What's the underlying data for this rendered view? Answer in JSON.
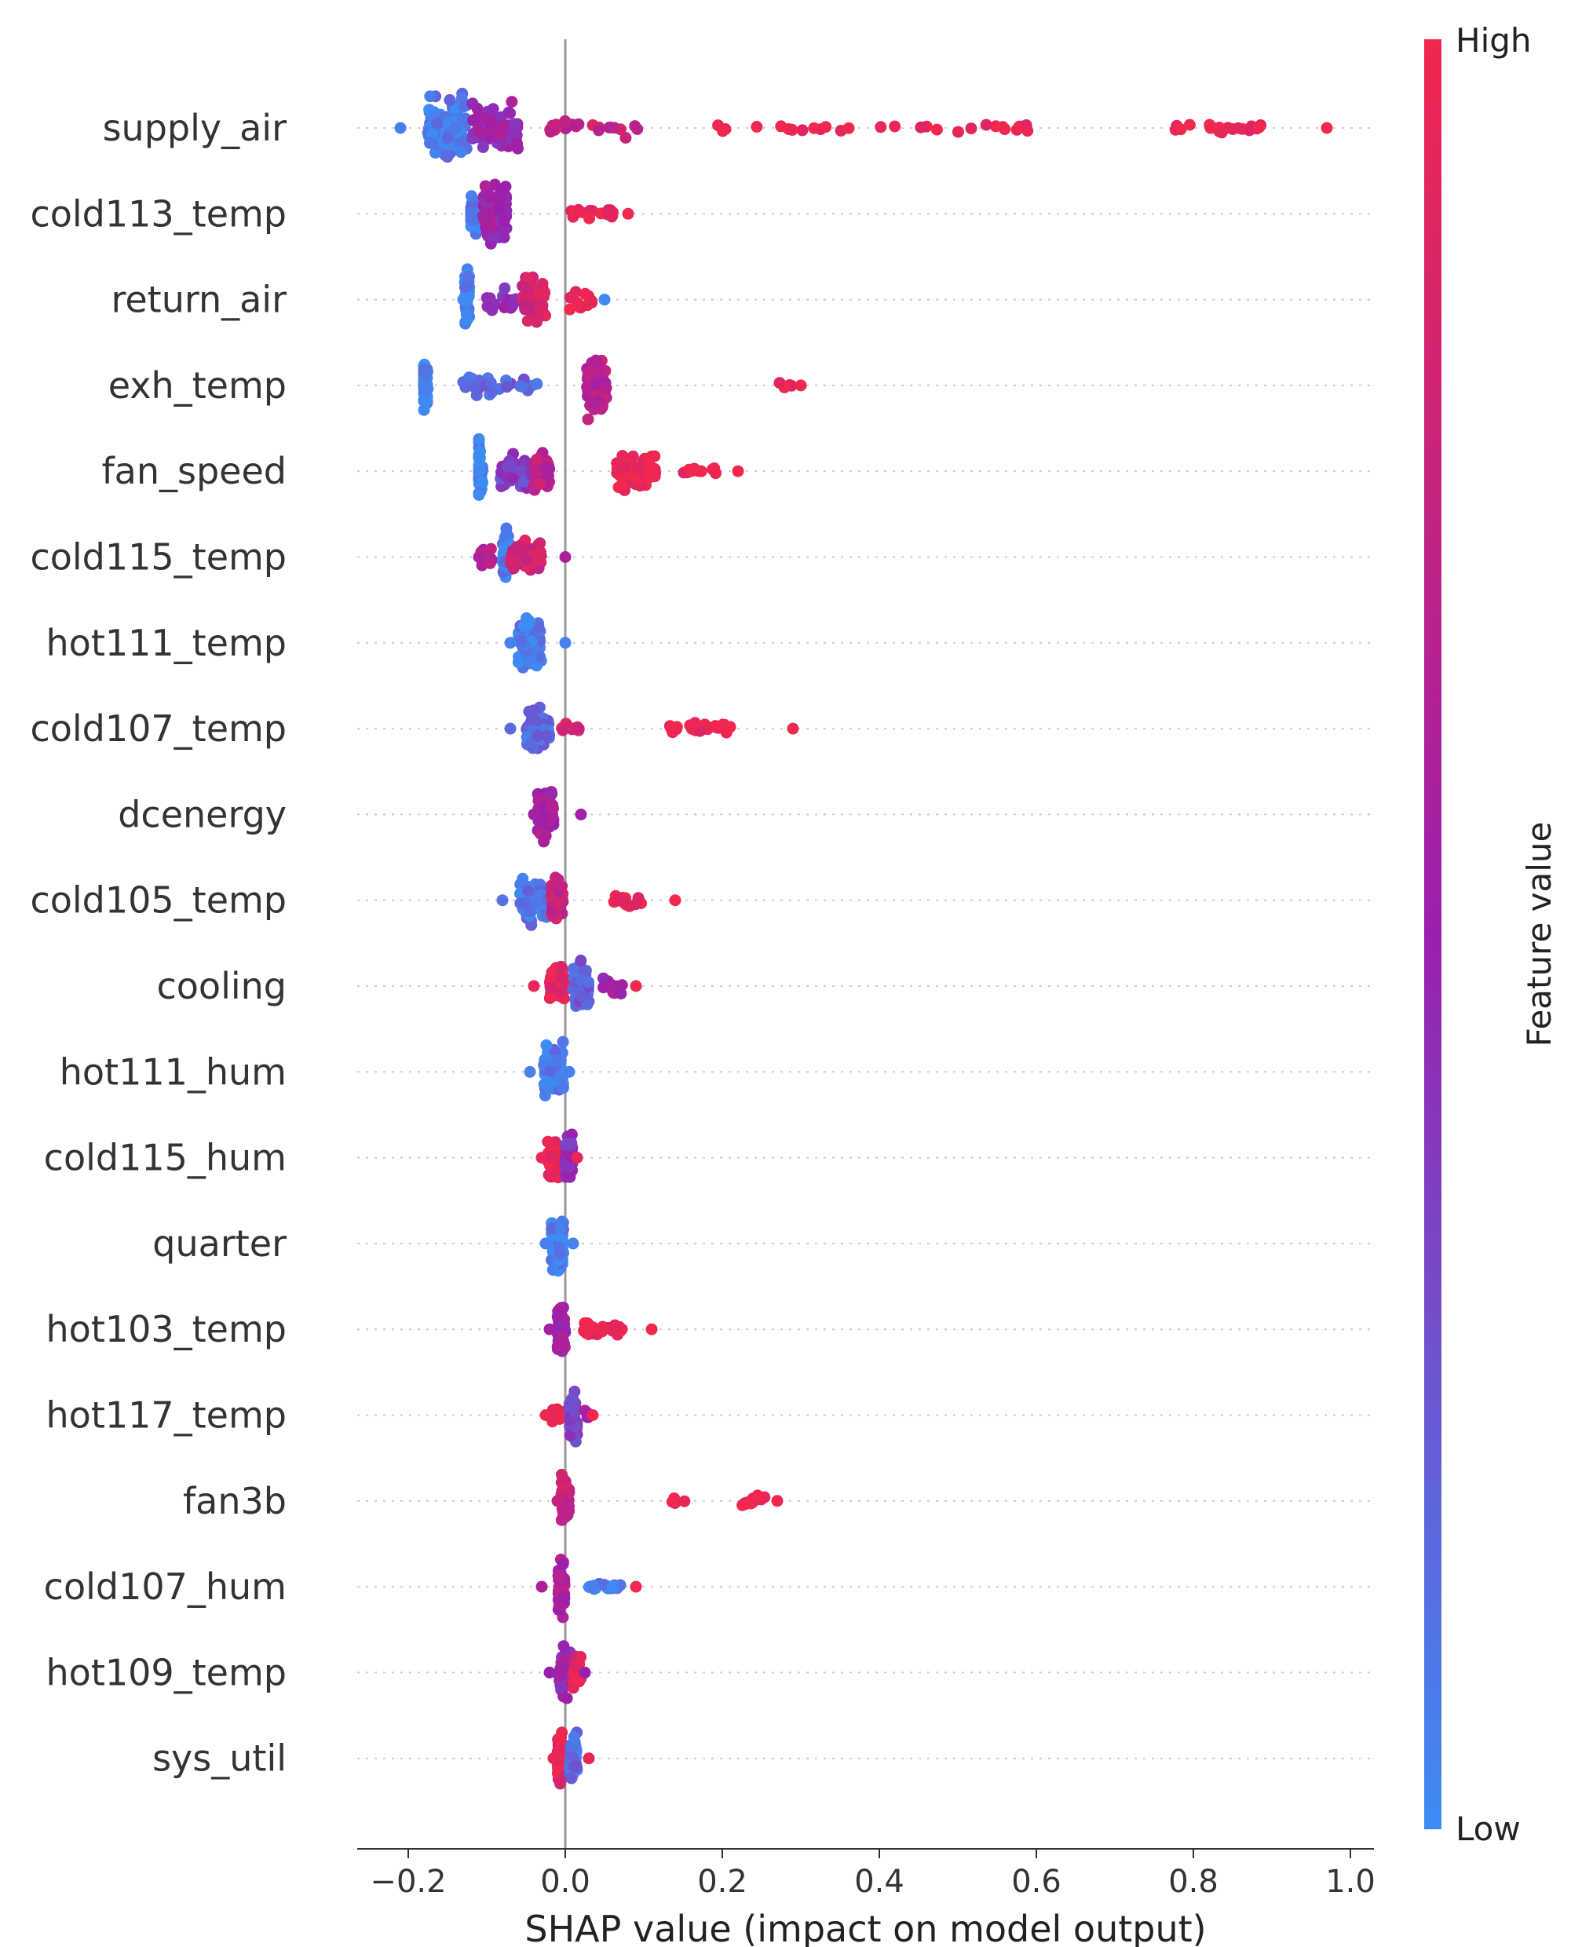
{
  "chart_data": {
    "type": "scatter",
    "subtype": "shap-beeswarm-summary",
    "xlabel": "SHAP value (impact on model output)",
    "xlim": [
      -0.265,
      1.03
    ],
    "xticks": [
      -0.2,
      0.0,
      0.2,
      0.4,
      0.6,
      0.8,
      1.0
    ],
    "xtick_labels": [
      "−0.2",
      "0.0",
      "0.2",
      "0.4",
      "0.6",
      "0.8",
      "1.0"
    ],
    "colorbar": {
      "label": "Feature value",
      "high_label": "High",
      "low_label": "Low",
      "low_color": "#3d8cf4",
      "mid_color": "#9b1fae",
      "high_color": "#f0274e"
    },
    "features": [
      {
        "name": "supply_air",
        "min": -0.21,
        "max": 0.97,
        "clusters": [
          {
            "c": -0.15,
            "w": 0.05,
            "n": 34,
            "spread": 2.6,
            "v": 0.08
          },
          {
            "c": -0.09,
            "w": 0.06,
            "n": 26,
            "spread": 2.0,
            "v": 0.5
          },
          {
            "c": 0.03,
            "w": 0.13,
            "n": 22,
            "spread": 0.7,
            "v": 0.75
          },
          {
            "c": 0.4,
            "w": 0.42,
            "n": 30,
            "spread": 0.3,
            "v": 1.0
          },
          {
            "c": 0.84,
            "w": 0.14,
            "n": 22,
            "spread": 0.35,
            "v": 1.0
          }
        ]
      },
      {
        "name": "cold113_temp",
        "min": -0.12,
        "max": 0.08,
        "clusters": [
          {
            "c": -0.115,
            "w": 0.02,
            "n": 14,
            "spread": 2.0,
            "v": 0.1
          },
          {
            "c": -0.09,
            "w": 0.03,
            "n": 30,
            "spread": 2.4,
            "v": 0.5
          },
          {
            "c": 0.035,
            "w": 0.055,
            "n": 18,
            "spread": 0.55,
            "v": 1.0
          }
        ]
      },
      {
        "name": "return_air",
        "min": -0.13,
        "max": 0.05,
        "clusters": [
          {
            "c": -0.125,
            "w": 0.006,
            "n": 14,
            "spread": 2.6,
            "v": 0.02
          },
          {
            "c": -0.08,
            "w": 0.04,
            "n": 20,
            "spread": 1.0,
            "v": 0.45
          },
          {
            "c": -0.04,
            "w": 0.03,
            "n": 22,
            "spread": 1.8,
            "v": 0.8
          },
          {
            "c": 0.02,
            "w": 0.03,
            "n": 12,
            "spread": 1.0,
            "v": 1.0
          }
        ]
      },
      {
        "name": "exh_temp",
        "min": -0.18,
        "max": 0.3,
        "clusters": [
          {
            "c": -0.18,
            "w": 0.01,
            "n": 14,
            "spread": 2.2,
            "v": 0.05
          },
          {
            "c": -0.08,
            "w": 0.1,
            "n": 26,
            "spread": 0.8,
            "v": 0.2
          },
          {
            "c": 0.04,
            "w": 0.025,
            "n": 30,
            "spread": 2.4,
            "v": 0.65
          },
          {
            "c": 0.28,
            "w": 0.02,
            "n": 5,
            "spread": 0.3,
            "v": 1.0
          }
        ]
      },
      {
        "name": "fan_speed",
        "min": -0.11,
        "max": 0.22,
        "clusters": [
          {
            "c": -0.11,
            "w": 0.01,
            "n": 14,
            "spread": 2.5,
            "v": 0.02
          },
          {
            "c": -0.06,
            "w": 0.045,
            "n": 28,
            "spread": 1.2,
            "v": 0.35
          },
          {
            "c": -0.03,
            "w": 0.02,
            "n": 16,
            "spread": 1.6,
            "v": 0.7
          },
          {
            "c": 0.09,
            "w": 0.05,
            "n": 26,
            "spread": 1.6,
            "v": 1.0
          },
          {
            "c": 0.17,
            "w": 0.05,
            "n": 12,
            "spread": 0.35,
            "v": 1.0
          }
        ]
      },
      {
        "name": "cold115_temp",
        "min": -0.11,
        "max": 0.0,
        "clusters": [
          {
            "c": -0.1,
            "w": 0.015,
            "n": 10,
            "spread": 0.8,
            "v": 0.6
          },
          {
            "c": -0.075,
            "w": 0.01,
            "n": 14,
            "spread": 2.2,
            "v": 0.05
          },
          {
            "c": -0.05,
            "w": 0.04,
            "n": 24,
            "spread": 1.4,
            "v": 0.8
          }
        ]
      },
      {
        "name": "hot111_temp",
        "min": -0.07,
        "max": 0.0,
        "clusters": [
          {
            "c": -0.045,
            "w": 0.03,
            "n": 34,
            "spread": 2.3,
            "v": 0.05
          }
        ]
      },
      {
        "name": "cold107_temp",
        "min": -0.07,
        "max": 0.29,
        "clusters": [
          {
            "c": -0.035,
            "w": 0.03,
            "n": 24,
            "spread": 2.0,
            "v": 0.15
          },
          {
            "c": 0.01,
            "w": 0.03,
            "n": 10,
            "spread": 0.7,
            "v": 0.85
          },
          {
            "c": 0.17,
            "w": 0.1,
            "n": 26,
            "spread": 0.45,
            "v": 1.0
          }
        ]
      },
      {
        "name": "dcenergy",
        "min": -0.04,
        "max": 0.02,
        "clusters": [
          {
            "c": -0.025,
            "w": 0.02,
            "n": 30,
            "spread": 2.1,
            "v": 0.55
          }
        ]
      },
      {
        "name": "cold105_temp",
        "min": -0.08,
        "max": 0.14,
        "clusters": [
          {
            "c": -0.04,
            "w": 0.035,
            "n": 24,
            "spread": 1.8,
            "v": 0.12
          },
          {
            "c": -0.01,
            "w": 0.015,
            "n": 16,
            "spread": 2.2,
            "v": 0.75
          },
          {
            "c": 0.08,
            "w": 0.045,
            "n": 14,
            "spread": 0.6,
            "v": 1.0
          }
        ]
      },
      {
        "name": "cooling",
        "min": -0.04,
        "max": 0.09,
        "clusters": [
          {
            "c": -0.01,
            "w": 0.02,
            "n": 22,
            "spread": 1.8,
            "v": 0.95
          },
          {
            "c": 0.02,
            "w": 0.02,
            "n": 20,
            "spread": 2.0,
            "v": 0.2
          },
          {
            "c": 0.06,
            "w": 0.03,
            "n": 12,
            "spread": 0.8,
            "v": 0.55
          }
        ]
      },
      {
        "name": "hot111_hum",
        "min": -0.045,
        "max": 0.005,
        "clusters": [
          {
            "c": -0.015,
            "w": 0.025,
            "n": 30,
            "spread": 2.2,
            "v": 0.05
          }
        ]
      },
      {
        "name": "cold115_hum",
        "min": -0.03,
        "max": 0.015,
        "clusters": [
          {
            "c": -0.015,
            "w": 0.015,
            "n": 20,
            "spread": 2.0,
            "v": 0.95
          },
          {
            "c": 0.005,
            "w": 0.01,
            "n": 18,
            "spread": 2.0,
            "v": 0.45
          }
        ]
      },
      {
        "name": "quarter",
        "min": -0.025,
        "max": 0.01,
        "clusters": [
          {
            "c": -0.01,
            "w": 0.015,
            "n": 32,
            "spread": 2.3,
            "v": 0.05
          }
        ]
      },
      {
        "name": "hot103_temp",
        "min": -0.02,
        "max": 0.11,
        "clusters": [
          {
            "c": -0.005,
            "w": 0.01,
            "n": 18,
            "spread": 2.0,
            "v": 0.55
          },
          {
            "c": 0.05,
            "w": 0.055,
            "n": 28,
            "spread": 0.7,
            "v": 1.0
          }
        ]
      },
      {
        "name": "hot117_temp",
        "min": -0.025,
        "max": 0.035,
        "clusters": [
          {
            "c": -0.01,
            "w": 0.015,
            "n": 12,
            "spread": 0.8,
            "v": 1.0
          },
          {
            "c": 0.01,
            "w": 0.01,
            "n": 22,
            "spread": 2.1,
            "v": 0.35
          },
          {
            "c": 0.025,
            "w": 0.01,
            "n": 6,
            "spread": 0.6,
            "v": 0.55
          }
        ]
      },
      {
        "name": "fan3b",
        "min": -0.01,
        "max": 0.27,
        "clusters": [
          {
            "c": 0.0,
            "w": 0.01,
            "n": 26,
            "spread": 2.2,
            "v": 0.75
          },
          {
            "c": 0.145,
            "w": 0.02,
            "n": 6,
            "spread": 0.4,
            "v": 1.0
          },
          {
            "c": 0.24,
            "w": 0.03,
            "n": 12,
            "spread": 0.6,
            "v": 1.0
          }
        ]
      },
      {
        "name": "cold107_hum",
        "min": -0.03,
        "max": 0.09,
        "clusters": [
          {
            "c": -0.005,
            "w": 0.008,
            "n": 22,
            "spread": 2.2,
            "v": 0.6
          },
          {
            "c": 0.05,
            "w": 0.045,
            "n": 22,
            "spread": 0.25,
            "v": 0.05
          }
        ]
      },
      {
        "name": "hot109_temp",
        "min": -0.02,
        "max": 0.025,
        "clusters": [
          {
            "c": 0.0,
            "w": 0.015,
            "n": 26,
            "spread": 2.1,
            "v": 0.5
          },
          {
            "c": 0.015,
            "w": 0.01,
            "n": 10,
            "spread": 1.4,
            "v": 0.9
          }
        ]
      },
      {
        "name": "sys_util",
        "min": -0.015,
        "max": 0.03,
        "clusters": [
          {
            "c": -0.005,
            "w": 0.01,
            "n": 22,
            "spread": 2.2,
            "v": 0.95
          },
          {
            "c": 0.01,
            "w": 0.01,
            "n": 20,
            "spread": 2.2,
            "v": 0.15
          }
        ]
      }
    ]
  }
}
